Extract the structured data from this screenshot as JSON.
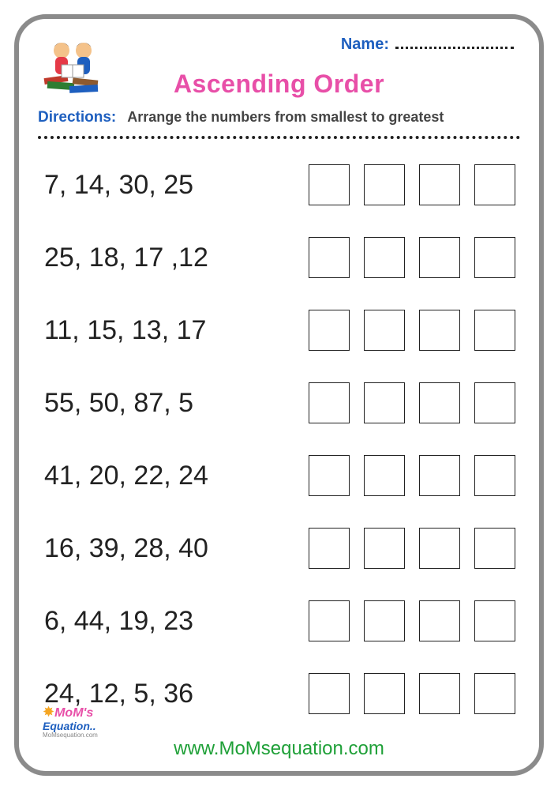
{
  "header": {
    "name_label": "Name:",
    "title": "Ascending Order"
  },
  "directions": {
    "label": "Directions:",
    "text": "Arrange the numbers from smallest to greatest"
  },
  "problems": [
    {
      "numbers": "7, 14, 30, 25",
      "box_count": 4
    },
    {
      "numbers": "25, 18, 17 ,12",
      "box_count": 4
    },
    {
      "numbers": "11, 15, 13, 17",
      "box_count": 4
    },
    {
      "numbers": "55, 50, 87, 5",
      "box_count": 4
    },
    {
      "numbers": "41, 20, 22, 24",
      "box_count": 4
    },
    {
      "numbers": "16, 39, 28, 40",
      "box_count": 4
    },
    {
      "numbers": "6, 44, 19, 23",
      "box_count": 4
    },
    {
      "numbers": "24, 12, 5, 36",
      "box_count": 4
    }
  ],
  "footer": {
    "logo_text1": "MoM's",
    "logo_text2": "Equation..",
    "logo_sub": "MoMsequation.com",
    "website": "www.MoMsequation.com"
  },
  "styling": {
    "frame_border_color": "#8b8b8b",
    "frame_border_radius": 40,
    "title_color": "#e84fa8",
    "label_color": "#1e5fbf",
    "text_color": "#444",
    "number_color": "#222",
    "website_color": "#1fa038",
    "box_border_color": "#222",
    "box_size": 52,
    "number_fontsize": 34,
    "title_fontsize": 32
  }
}
